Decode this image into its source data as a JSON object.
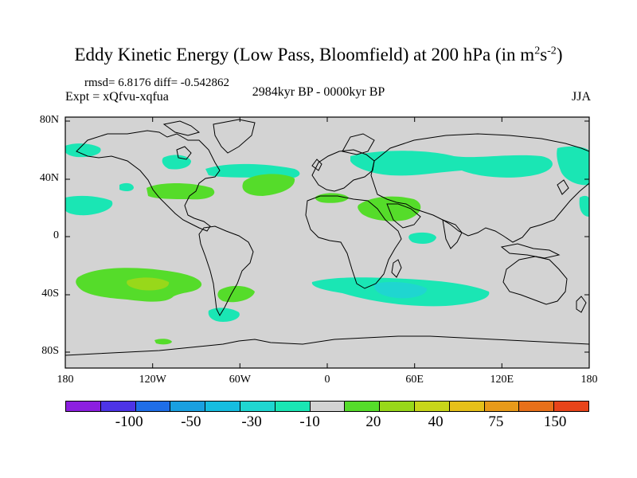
{
  "title": {
    "main": "Eddy Kinetic Energy (Low Pass, Bloomfield) at 200 hPa (in m",
    "sup1": "2",
    "mid": "s",
    "sup2": "-2",
    "end": ")"
  },
  "stats": "rmsd= 6.8176 diff= -0.542862",
  "expt": "Expt = xQfvu-xqfua",
  "period": "2984kyr BP - 0000kyr BP",
  "season": "JJA",
  "lat_labels": [
    "80N",
    "40N",
    "0",
    "40S",
    "80S"
  ],
  "lon_labels": [
    "180",
    "120W",
    "60W",
    "0",
    "60E",
    "120E",
    "180"
  ],
  "colorbar": {
    "labels": [
      "-100",
      "-50",
      "-30",
      "-10",
      "20",
      "40",
      "75",
      "150"
    ],
    "colors": [
      "#8c1fe0",
      "#4d34e6",
      "#1f6ee8",
      "#1aa0e0",
      "#16bde0",
      "#1fd6d0",
      "#1ae6b4",
      "#d3d3d3",
      "#55dc2a",
      "#98d81a",
      "#c8d61a",
      "#e6c01a",
      "#e89a1a",
      "#e8701a",
      "#e8441a"
    ]
  },
  "map": {
    "land_color": "#d3d3d3",
    "anomaly_colors": {
      "pos_low": "#55dc2a",
      "pos_mid": "#98d81a",
      "neg_low": "#1ae6b4",
      "neg_mid": "#1fd6d0",
      "neg_deep": "#16bde0"
    }
  }
}
